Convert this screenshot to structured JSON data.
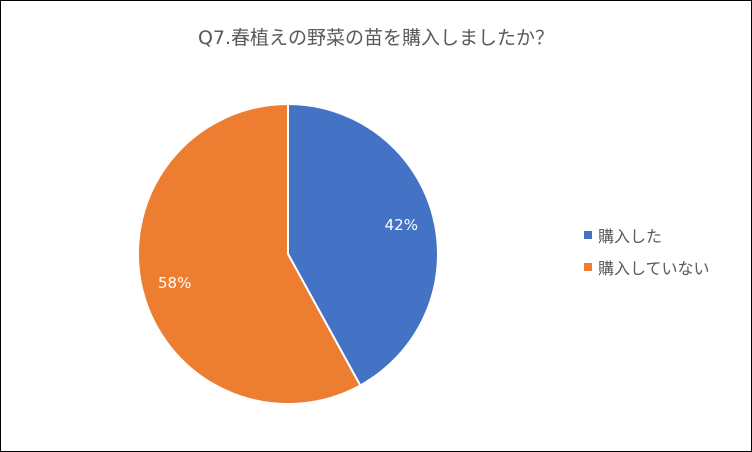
{
  "chart_data": {
    "type": "pie",
    "title": "Q7.春植えの野菜の苗を購入しましたか？",
    "categories": [
      "購入した",
      "購入していない"
    ],
    "values": [
      42,
      58
    ],
    "data_labels": [
      "42%",
      "58%"
    ],
    "colors": [
      "#4472C4",
      "#ED7D31"
    ],
    "start_angle_deg": 0,
    "direction": "clockwise",
    "legend_position": "right"
  }
}
